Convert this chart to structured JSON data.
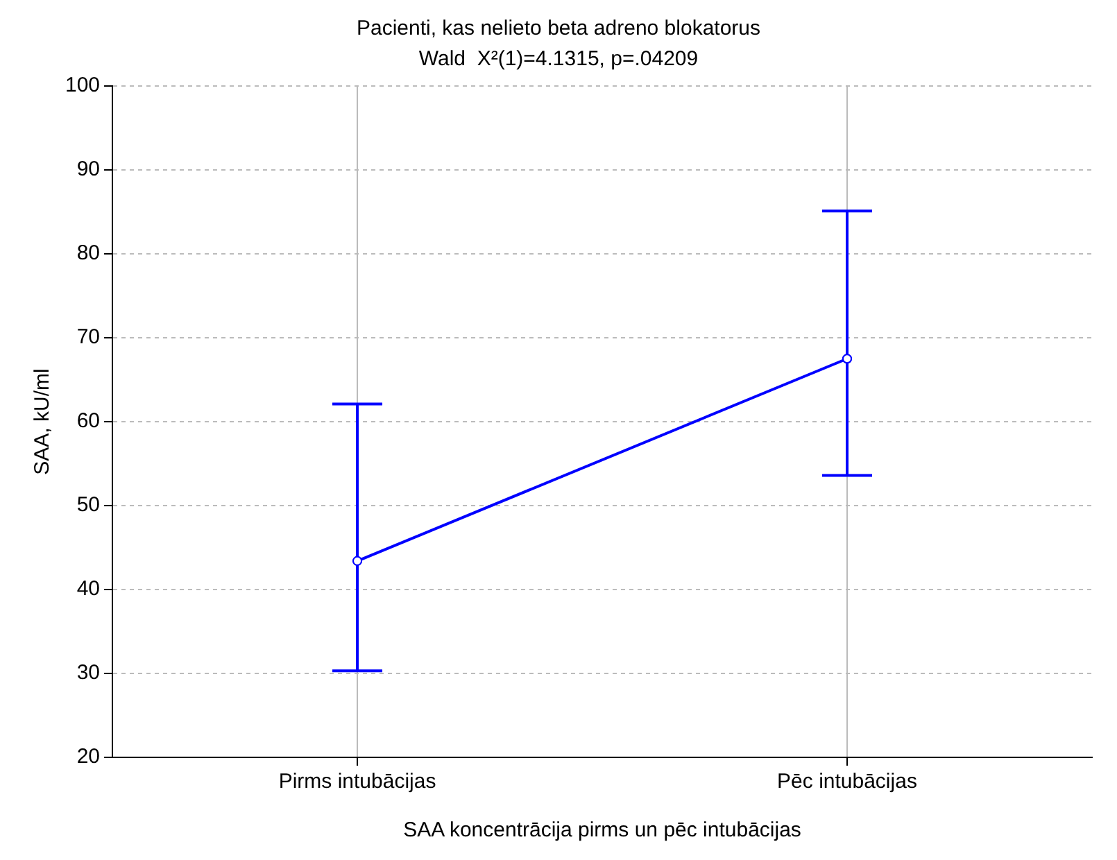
{
  "chart_data": {
    "type": "line",
    "title": "Pacienti, kas nelieto beta adreno blokatorus",
    "subtitle": "Wald  X²(1)=4.1315, p=.04209",
    "xlabel": "SAA koncentrācija pirms un pēc intubācijas",
    "ylabel": "SAA, kU/ml",
    "categories": [
      "Pirms intubācijas",
      "Pēc intubācijas"
    ],
    "series": [
      {
        "color": "#0000ff",
        "values": [
          43.4,
          67.5
        ],
        "errors": [
          [
            30.3,
            62.1
          ],
          [
            53.6,
            85.1
          ]
        ]
      }
    ],
    "ylim": [
      20,
      100
    ],
    "yticks": [
      20,
      30,
      40,
      50,
      60,
      70,
      80,
      90,
      100
    ],
    "grid": true,
    "legend": false,
    "marker": "circle",
    "line_style": "solid"
  }
}
